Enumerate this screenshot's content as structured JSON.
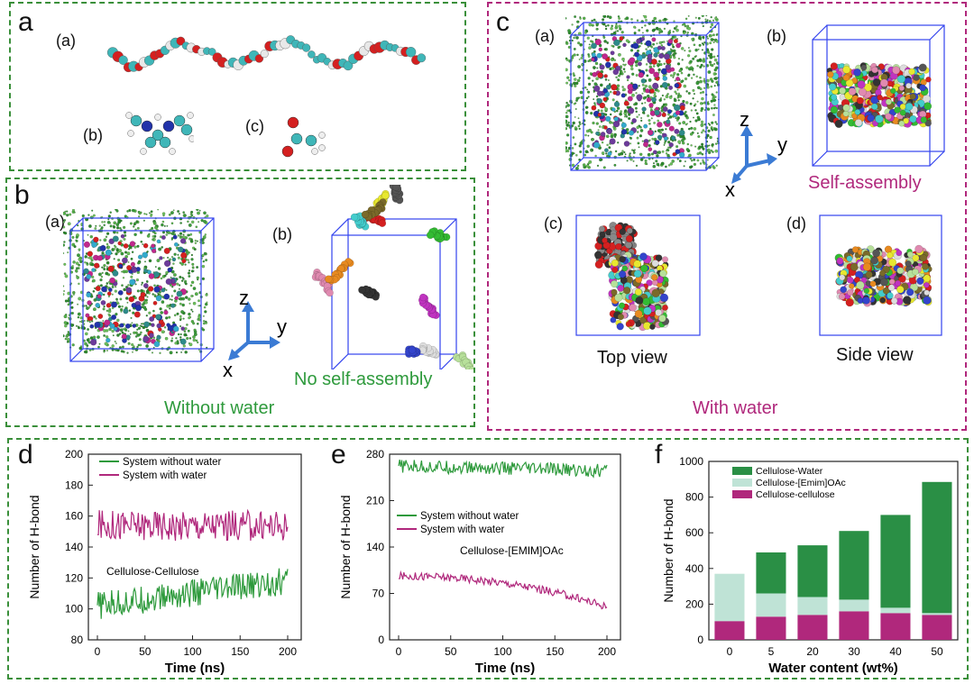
{
  "panels": {
    "a": {
      "label": "a",
      "sub": [
        "(a)",
        "(b)",
        "(c)"
      ]
    },
    "b": {
      "label": "b",
      "sub": [
        "(a)",
        "(b)"
      ],
      "axes": {
        "z": "z",
        "y": "y",
        "x": "x"
      },
      "note": "No self-assembly",
      "caption": "Without water"
    },
    "c": {
      "label": "c",
      "sub": [
        "(a)",
        "(b)",
        "(c)",
        "(d)"
      ],
      "axes": {
        "z": "z",
        "y": "y",
        "x": "x"
      },
      "note": "Self-assembly",
      "top": "Top view",
      "side": "Side view",
      "caption": "With water"
    },
    "d": {
      "label": "d"
    },
    "e": {
      "label": "e"
    },
    "f": {
      "label": "f"
    }
  },
  "colors": {
    "green": "#2e9a3c",
    "magenta": "#b0287c",
    "lightgreen": "#bfe3d6",
    "darkgreen": "#2a8f45"
  },
  "chart_data": [
    {
      "id": "d",
      "type": "line",
      "xlabel": "Time (ns)",
      "ylabel": "Number of H-bond",
      "xlim": [
        0,
        200
      ],
      "ylim": [
        80,
        200
      ],
      "xticks": [
        0,
        50,
        100,
        150,
        200
      ],
      "yticks": [
        80,
        100,
        120,
        140,
        160,
        180,
        200
      ],
      "annotation": "Cellulose-Cellulose",
      "series": [
        {
          "name": "System without water",
          "color": "#2e9a3c",
          "mean": [
            102,
            118
          ],
          "amp": 9
        },
        {
          "name": "System with water",
          "color": "#b0287c",
          "mean": [
            154,
            154
          ],
          "amp": 10
        }
      ]
    },
    {
      "id": "e",
      "type": "line",
      "xlabel": "Time (ns)",
      "ylabel": "Number of H-bond",
      "xlim": [
        0,
        200
      ],
      "ylim": [
        0,
        280
      ],
      "xticks": [
        0,
        50,
        100,
        150,
        200
      ],
      "yticks": [
        0,
        70,
        140,
        210,
        280
      ],
      "annotation": "Cellulose-[EMIM]OAc",
      "series": [
        {
          "name": "System without water",
          "color": "#2e9a3c",
          "mean": [
            262,
            255
          ],
          "amp": 10
        },
        {
          "name": "System with water",
          "color": "#b0287c",
          "mean": [
            96,
            50
          ],
          "amp": 6
        }
      ]
    },
    {
      "id": "f",
      "type": "bar",
      "xlabel": "Water content (wt%)",
      "ylabel": "Number of H-bond",
      "ylim": [
        0,
        1000
      ],
      "yticks": [
        0,
        200,
        400,
        600,
        800,
        1000
      ],
      "categories": [
        "0",
        "5",
        "20",
        "30",
        "40",
        "50"
      ],
      "series": [
        {
          "name": "Cellulose-cellulose",
          "color": "#b0287c",
          "values": [
            105,
            130,
            140,
            160,
            150,
            140
          ]
        },
        {
          "name": "Cellulose-[Emim]OAc",
          "color": "#bfe3d6",
          "values": [
            265,
            130,
            100,
            65,
            30,
            10
          ]
        },
        {
          "name": "Cellulose-Water",
          "color": "#2a8f45",
          "values": [
            0,
            230,
            290,
            385,
            520,
            735
          ]
        }
      ]
    }
  ]
}
